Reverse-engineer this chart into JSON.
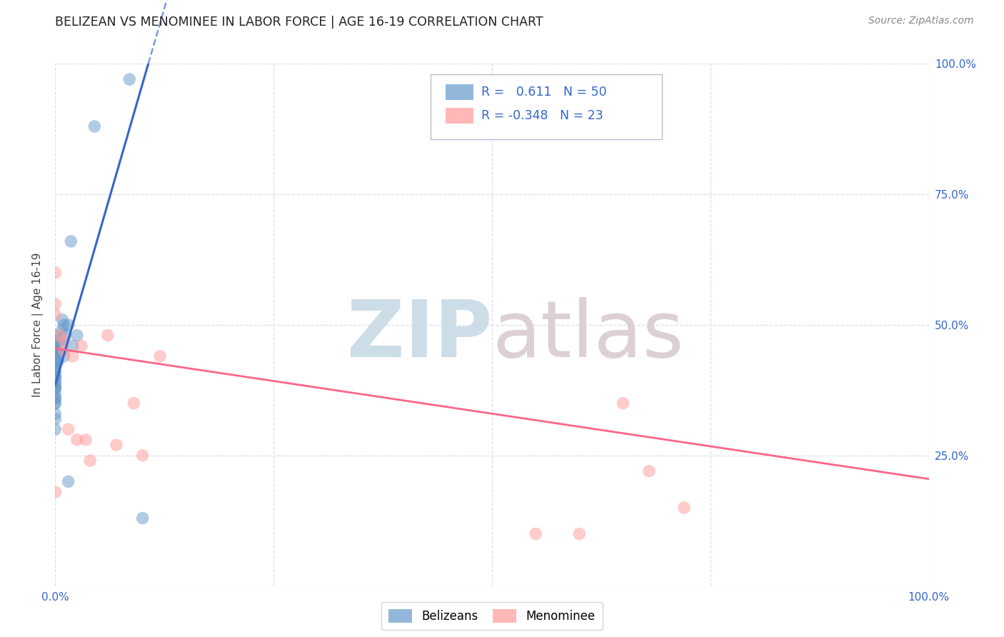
{
  "title": "BELIZEAN VS MENOMINEE IN LABOR FORCE | AGE 16-19 CORRELATION CHART",
  "source": "Source: ZipAtlas.com",
  "ylabel": "In Labor Force | Age 16-19",
  "xlim": [
    0.0,
    1.0
  ],
  "ylim": [
    0.0,
    1.0
  ],
  "xticks": [
    0.0,
    0.25,
    0.5,
    0.75,
    1.0
  ],
  "yticks": [
    0.0,
    0.25,
    0.5,
    0.75,
    1.0
  ],
  "xtick_labels": [
    "0.0%",
    "",
    "",
    "",
    "100.0%"
  ],
  "ytick_labels_right": [
    "",
    "25.0%",
    "50.0%",
    "75.0%",
    "100.0%"
  ],
  "blue_R": "0.611",
  "blue_N": "50",
  "pink_R": "-0.348",
  "pink_N": "23",
  "blue_color": "#6699CC",
  "pink_color": "#FF9999",
  "blue_line_color": "#3366CC",
  "pink_line_color": "#FF6688",
  "blue_points_x": [
    0.0,
    0.0,
    0.0,
    0.0,
    0.0,
    0.0,
    0.0,
    0.0,
    0.0,
    0.0,
    0.0,
    0.0,
    0.0,
    0.0,
    0.0,
    0.0,
    0.0,
    0.0,
    0.0,
    0.0,
    0.0,
    0.0,
    0.0,
    0.0,
    0.0,
    0.0,
    0.0,
    0.0,
    0.0,
    0.0,
    0.0,
    0.0,
    0.0,
    0.003,
    0.003,
    0.005,
    0.007,
    0.008,
    0.008,
    0.01,
    0.01,
    0.012,
    0.015,
    0.015,
    0.018,
    0.02,
    0.025,
    0.045,
    0.085,
    0.1
  ],
  "blue_points_y": [
    0.3,
    0.32,
    0.33,
    0.35,
    0.35,
    0.36,
    0.36,
    0.37,
    0.38,
    0.38,
    0.38,
    0.39,
    0.39,
    0.4,
    0.4,
    0.4,
    0.41,
    0.41,
    0.42,
    0.42,
    0.43,
    0.43,
    0.43,
    0.43,
    0.44,
    0.44,
    0.44,
    0.45,
    0.45,
    0.45,
    0.46,
    0.47,
    0.48,
    0.43,
    0.44,
    0.47,
    0.46,
    0.49,
    0.51,
    0.5,
    0.44,
    0.48,
    0.2,
    0.5,
    0.66,
    0.46,
    0.48,
    0.88,
    0.97,
    0.13
  ],
  "pink_points_x": [
    0.0,
    0.0,
    0.0,
    0.0,
    0.005,
    0.01,
    0.01,
    0.015,
    0.02,
    0.025,
    0.03,
    0.035,
    0.04,
    0.06,
    0.07,
    0.09,
    0.1,
    0.12,
    0.55,
    0.6,
    0.65,
    0.68,
    0.72
  ],
  "pink_points_y": [
    0.6,
    0.54,
    0.52,
    0.18,
    0.48,
    0.47,
    0.45,
    0.3,
    0.44,
    0.28,
    0.46,
    0.28,
    0.24,
    0.48,
    0.27,
    0.35,
    0.25,
    0.44,
    0.1,
    0.1,
    0.35,
    0.22,
    0.15
  ],
  "blue_trend_start_x": 0.0,
  "blue_trend_start_y": 0.385,
  "blue_trend_slope": 5.77,
  "pink_trend_x": [
    0.0,
    1.0
  ],
  "pink_trend_y": [
    0.455,
    0.205
  ],
  "background_color": "#FFFFFF",
  "grid_color": "#DDDDEE",
  "tick_color": "#3366CC"
}
